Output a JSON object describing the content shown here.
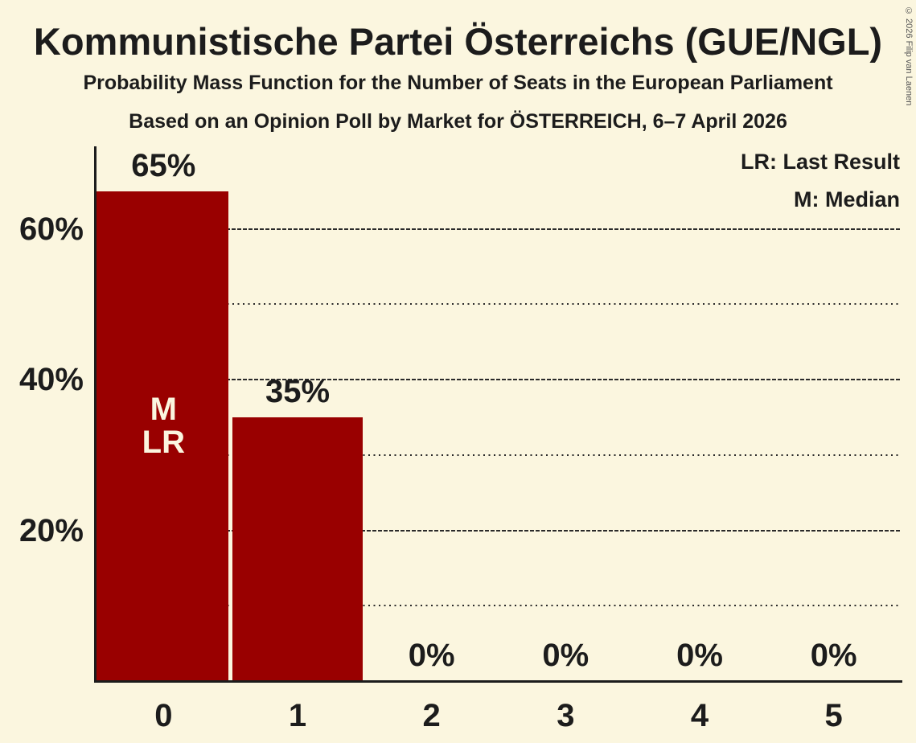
{
  "header": {
    "title": "Kommunistische Partei Österreichs (GUE/NGL)",
    "subtitle1": "Probability Mass Function for the Number of Seats in the European Parliament",
    "subtitle2": "Based on an Opinion Poll by Market for ÖSTERREICH, 6–7 April 2026"
  },
  "legend": {
    "lr": "LR: Last Result",
    "m": "M: Median"
  },
  "copyright": "© 2026 Filip van Laenen",
  "colors": {
    "background": "#FBF6DF",
    "bar": "#990000",
    "text": "#1C1C1C",
    "grid": "#2A2A2A",
    "annotation_text": "#FBF6DF"
  },
  "chart_data": {
    "type": "bar",
    "title": "Probability Mass Function for the Number of Seats in the European Parliament",
    "xlabel": "",
    "ylabel": "",
    "categories": [
      "0",
      "1",
      "2",
      "3",
      "4",
      "5"
    ],
    "values": [
      65,
      35,
      0,
      0,
      0,
      0
    ],
    "value_labels": [
      "65%",
      "35%",
      "0%",
      "0%",
      "0%",
      "0%"
    ],
    "ylim": [
      0,
      70
    ],
    "yticks_solid": [
      20,
      40,
      60
    ],
    "yticks_dotted": [
      10,
      30,
      50
    ],
    "ytick_label_suffix": "%",
    "grid": true,
    "legend_position": "top-right",
    "annotations": [
      {
        "category_index": 0,
        "lines": [
          "M",
          "LR"
        ]
      }
    ]
  }
}
